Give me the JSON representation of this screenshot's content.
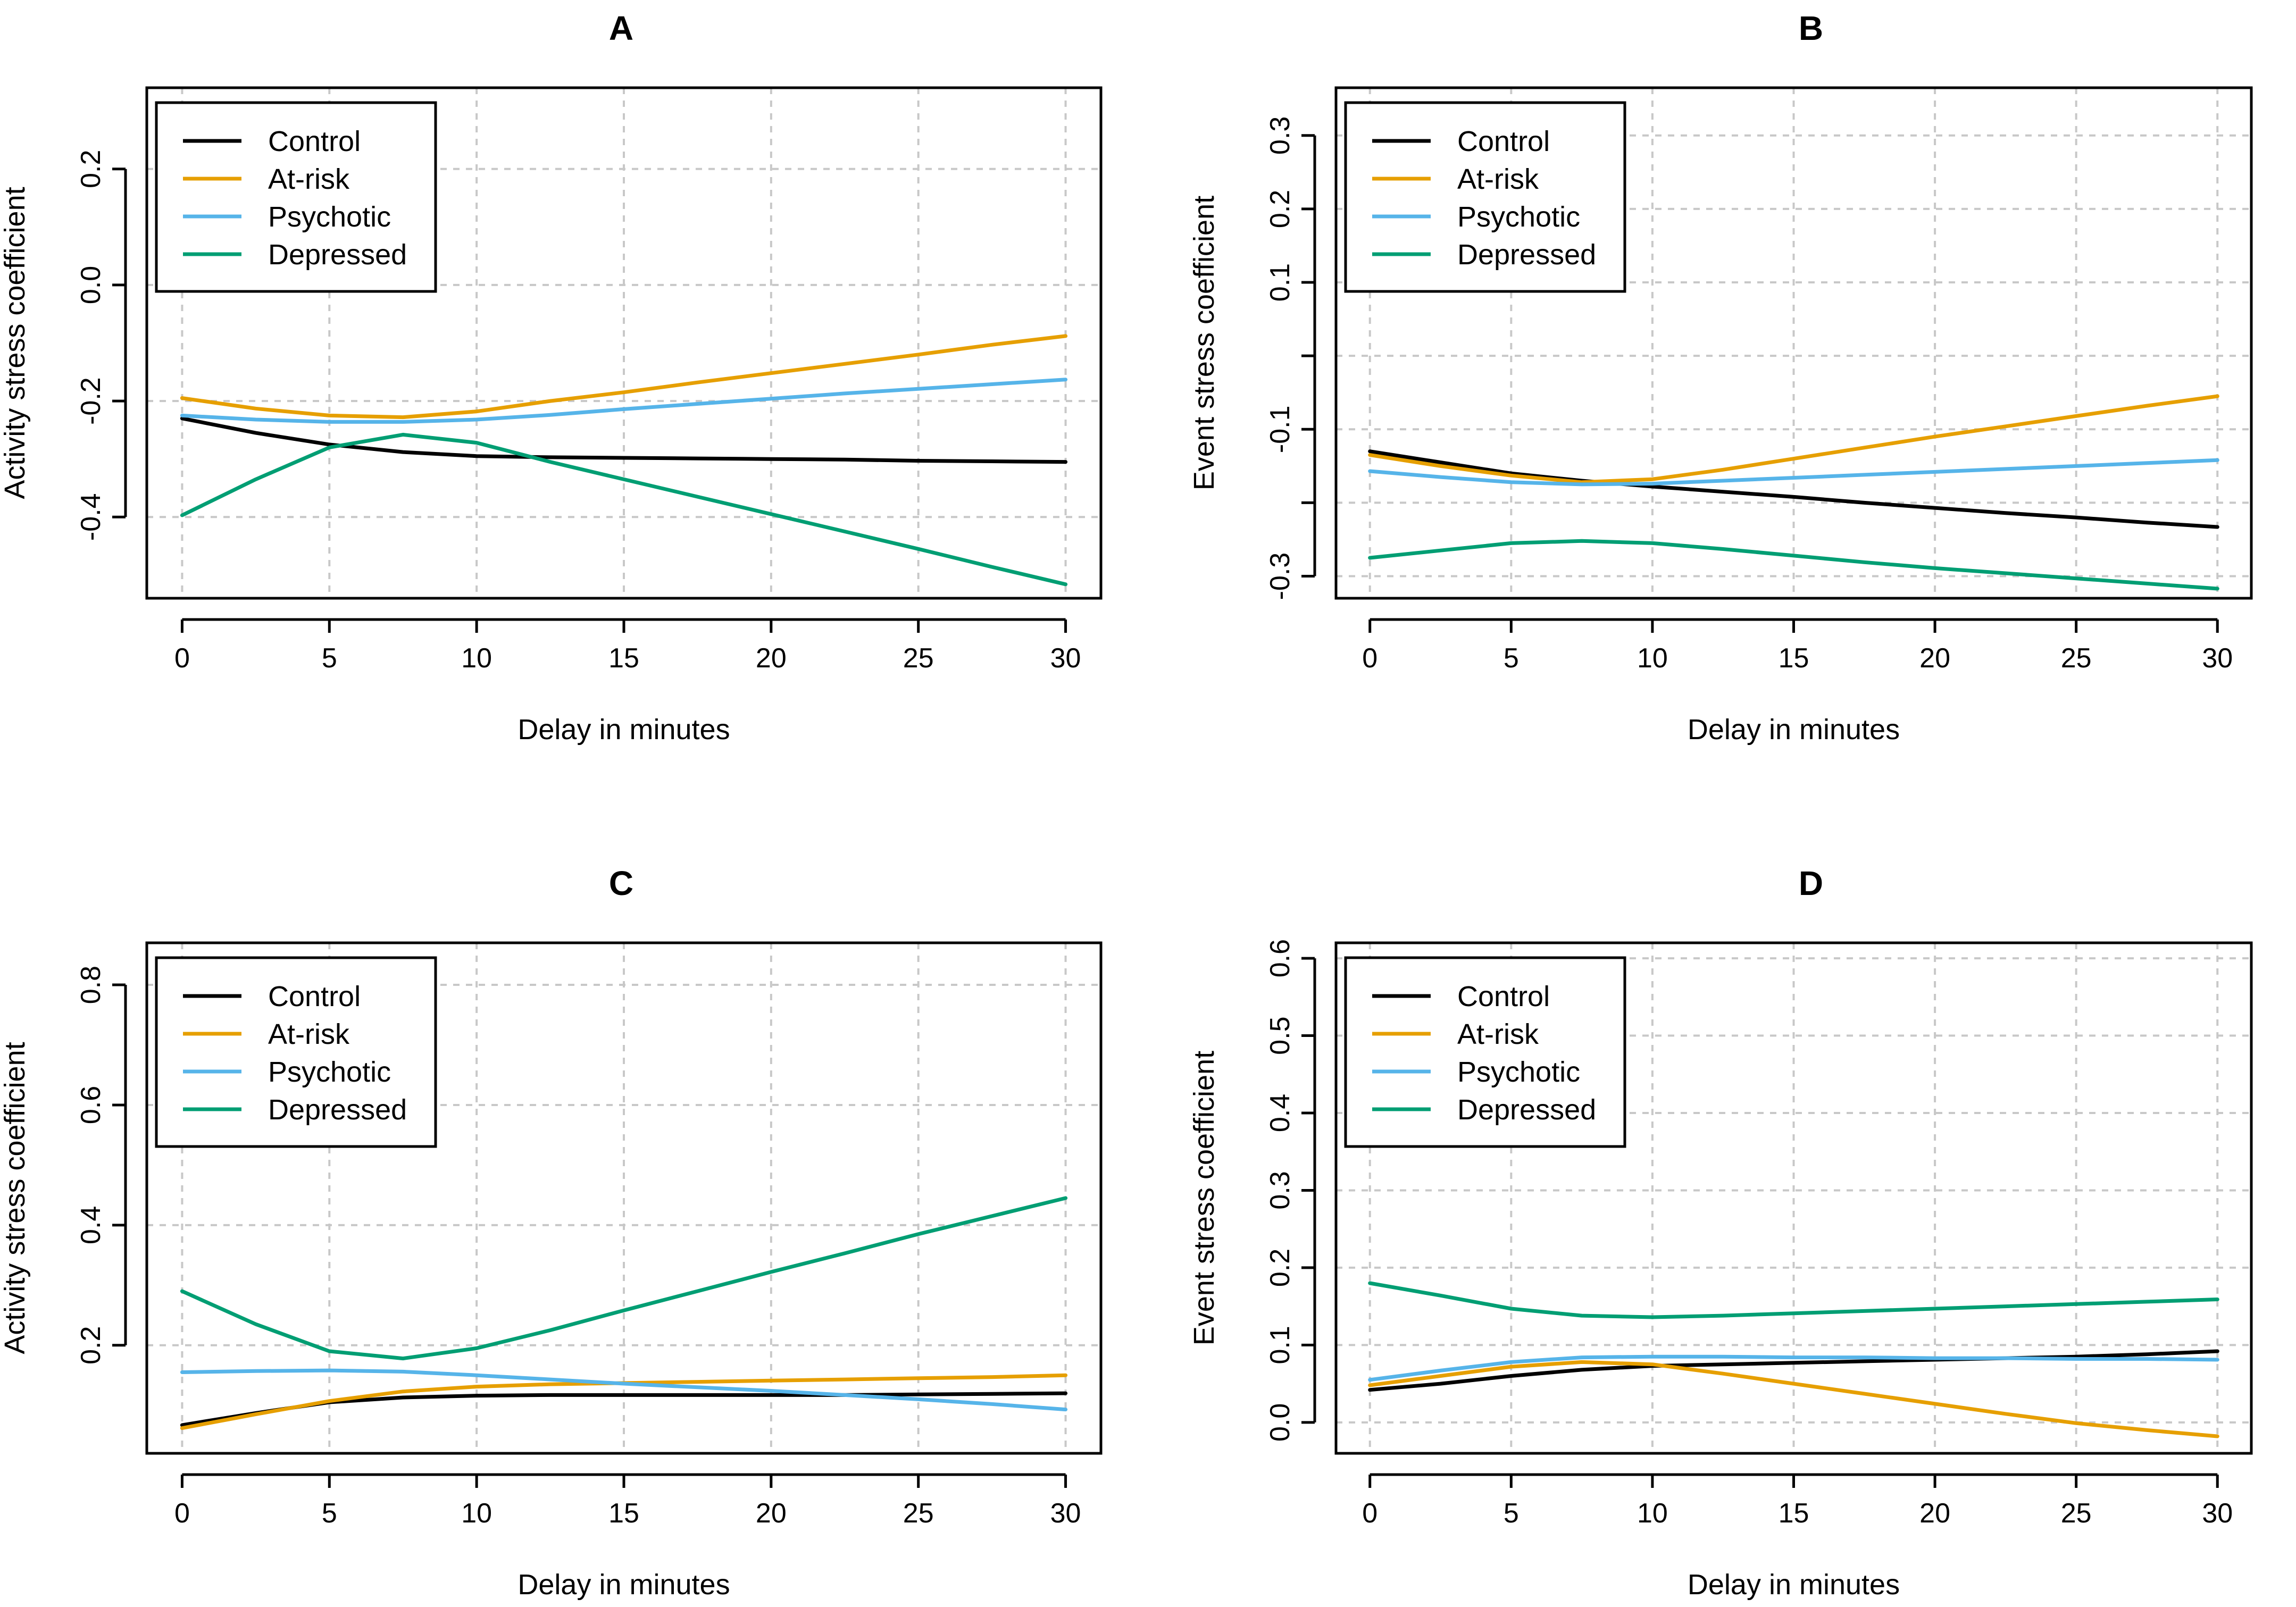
{
  "colors": {
    "Control": "#000000",
    "At-risk": "#E69F00",
    "Psychotic": "#56B4E9",
    "Depressed": "#009E73"
  },
  "legend": [
    "Control",
    "At-risk",
    "Psychotic",
    "Depressed"
  ],
  "chart_data": [
    {
      "panel": "A",
      "type": "line",
      "title": "A",
      "xlabel": "Delay in minutes",
      "ylabel": "Activity stress coefficient",
      "xlim": [
        -1.2,
        31.2
      ],
      "ylim": [
        -0.54,
        0.34
      ],
      "xticks": [
        0,
        5,
        10,
        15,
        20,
        25,
        30
      ],
      "yticks": [
        -0.4,
        -0.2,
        0.0,
        0.2
      ],
      "ytick_labels": [
        "-0.4",
        "-0.2",
        "0.0",
        "0.2"
      ],
      "legend_position": "top-left",
      "grid": true,
      "x": [
        0,
        2.5,
        5,
        7.5,
        10,
        12.5,
        15,
        17.5,
        20,
        22.5,
        25,
        27.5,
        30
      ],
      "series": [
        {
          "name": "Control",
          "values": [
            -0.23,
            -0.255,
            -0.275,
            -0.288,
            -0.295,
            -0.297,
            -0.298,
            -0.299,
            -0.3,
            -0.301,
            -0.303,
            -0.304,
            -0.305
          ]
        },
        {
          "name": "At-risk",
          "values": [
            -0.195,
            -0.213,
            -0.225,
            -0.228,
            -0.218,
            -0.2,
            -0.185,
            -0.168,
            -0.152,
            -0.136,
            -0.12,
            -0.103,
            -0.088
          ]
        },
        {
          "name": "Psychotic",
          "values": [
            -0.225,
            -0.232,
            -0.236,
            -0.236,
            -0.232,
            -0.224,
            -0.214,
            -0.205,
            -0.196,
            -0.187,
            -0.179,
            -0.171,
            -0.163
          ]
        },
        {
          "name": "Depressed",
          "values": [
            -0.397,
            -0.335,
            -0.28,
            -0.258,
            -0.272,
            -0.305,
            -0.335,
            -0.365,
            -0.395,
            -0.425,
            -0.455,
            -0.486,
            -0.516
          ]
        }
      ]
    },
    {
      "panel": "B",
      "type": "line",
      "title": "B",
      "xlabel": "Delay in minutes",
      "ylabel": "Event stress coefficient",
      "xlim": [
        -1.2,
        31.2
      ],
      "ylim": [
        -0.33,
        0.365
      ],
      "xticks": [
        0,
        5,
        10,
        15,
        20,
        25,
        30
      ],
      "yticks": [
        -0.3,
        -0.2,
        -0.1,
        0.0,
        0.1,
        0.2,
        0.3
      ],
      "ytick_labels": [
        "-0.3",
        "",
        "-0.1",
        "",
        "0.1",
        "0.2",
        "0.3"
      ],
      "legend_position": "top-left",
      "grid": true,
      "x": [
        0,
        2.5,
        5,
        7.5,
        10,
        12.5,
        15,
        17.5,
        20,
        22.5,
        25,
        27.5,
        30
      ],
      "series": [
        {
          "name": "Control",
          "values": [
            -0.13,
            -0.145,
            -0.16,
            -0.17,
            -0.178,
            -0.185,
            -0.192,
            -0.2,
            -0.207,
            -0.214,
            -0.22,
            -0.227,
            -0.233
          ]
        },
        {
          "name": "At-risk",
          "values": [
            -0.135,
            -0.15,
            -0.163,
            -0.172,
            -0.168,
            -0.155,
            -0.14,
            -0.125,
            -0.11,
            -0.096,
            -0.082,
            -0.068,
            -0.055
          ]
        },
        {
          "name": "Psychotic",
          "values": [
            -0.157,
            -0.165,
            -0.172,
            -0.175,
            -0.174,
            -0.17,
            -0.166,
            -0.162,
            -0.158,
            -0.154,
            -0.15,
            -0.146,
            -0.142
          ]
        },
        {
          "name": "Depressed",
          "values": [
            -0.275,
            -0.265,
            -0.255,
            -0.252,
            -0.255,
            -0.263,
            -0.272,
            -0.281,
            -0.289,
            -0.296,
            -0.303,
            -0.31,
            -0.317
          ]
        }
      ]
    },
    {
      "panel": "C",
      "type": "line",
      "title": "C",
      "xlabel": "Delay in minutes",
      "ylabel": "Activity stress coefficient",
      "xlim": [
        -1.2,
        31.2
      ],
      "ylim": [
        0.02,
        0.87
      ],
      "xticks": [
        0,
        5,
        10,
        15,
        20,
        25,
        30
      ],
      "yticks": [
        0.2,
        0.4,
        0.6,
        0.8
      ],
      "ytick_labels": [
        "0.2",
        "0.4",
        "0.6",
        "0.8"
      ],
      "legend_position": "top-left",
      "grid": true,
      "x": [
        0,
        2.5,
        5,
        7.5,
        10,
        12.5,
        15,
        17.5,
        20,
        22.5,
        25,
        27.5,
        30
      ],
      "series": [
        {
          "name": "Control",
          "values": [
            0.067,
            0.087,
            0.105,
            0.113,
            0.116,
            0.117,
            0.117,
            0.117,
            0.117,
            0.117,
            0.118,
            0.119,
            0.12
          ]
        },
        {
          "name": "At-risk",
          "values": [
            0.062,
            0.085,
            0.107,
            0.123,
            0.131,
            0.135,
            0.137,
            0.139,
            0.141,
            0.143,
            0.145,
            0.147,
            0.15
          ]
        },
        {
          "name": "Psychotic",
          "values": [
            0.155,
            0.157,
            0.158,
            0.156,
            0.15,
            0.143,
            0.136,
            0.13,
            0.124,
            0.117,
            0.11,
            0.102,
            0.093
          ]
        },
        {
          "name": "Depressed",
          "values": [
            0.29,
            0.235,
            0.19,
            0.178,
            0.195,
            0.225,
            0.258,
            0.29,
            0.322,
            0.353,
            0.385,
            0.415,
            0.445
          ]
        }
      ]
    },
    {
      "panel": "D",
      "type": "line",
      "title": "D",
      "xlabel": "Delay in minutes",
      "ylabel": "Event stress coefficient",
      "xlim": [
        -1.2,
        31.2
      ],
      "ylim": [
        -0.04,
        0.62
      ],
      "xticks": [
        0,
        5,
        10,
        15,
        20,
        25,
        30
      ],
      "yticks": [
        0.0,
        0.1,
        0.2,
        0.3,
        0.4,
        0.5,
        0.6
      ],
      "ytick_labels": [
        "0.0",
        "0.1",
        "0.2",
        "0.3",
        "0.4",
        "0.5",
        "0.6"
      ],
      "legend_position": "top-left",
      "grid": true,
      "x": [
        0,
        2.5,
        5,
        7.5,
        10,
        12.5,
        15,
        17.5,
        20,
        22.5,
        25,
        27.5,
        30
      ],
      "series": [
        {
          "name": "Control",
          "values": [
            0.042,
            0.05,
            0.06,
            0.068,
            0.073,
            0.075,
            0.077,
            0.079,
            0.081,
            0.083,
            0.085,
            0.088,
            0.092
          ]
        },
        {
          "name": "At-risk",
          "values": [
            0.048,
            0.06,
            0.072,
            0.078,
            0.075,
            0.063,
            0.05,
            0.037,
            0.024,
            0.011,
            -0.001,
            -0.01,
            -0.018
          ]
        },
        {
          "name": "Psychotic",
          "values": [
            0.055,
            0.067,
            0.078,
            0.084,
            0.085,
            0.085,
            0.084,
            0.084,
            0.083,
            0.083,
            0.082,
            0.082,
            0.081
          ]
        },
        {
          "name": "Depressed",
          "values": [
            0.18,
            0.164,
            0.147,
            0.138,
            0.136,
            0.138,
            0.141,
            0.144,
            0.147,
            0.15,
            0.153,
            0.156,
            0.159
          ]
        }
      ]
    }
  ]
}
